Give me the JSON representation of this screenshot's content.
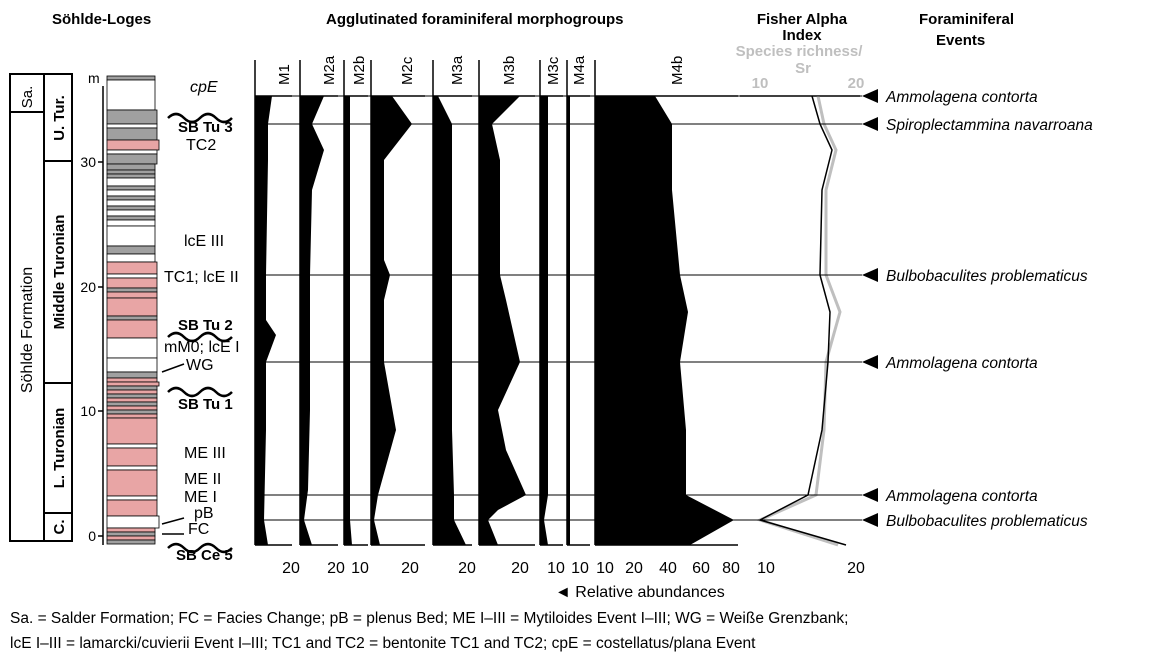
{
  "headers": {
    "section": "Söhlde-Loges",
    "morphogroups": "Agglutinated foraminiferal morphogroups",
    "fisher_line1": "Fisher Alpha",
    "fisher_line2": "Index",
    "richness_line1": "Species richness/",
    "richness_line2": "Sr",
    "events_line1": "Foraminiferal",
    "events_line2": "Events"
  },
  "depth_unit": "m",
  "depth_ticks": [
    "0",
    "10",
    "20",
    "30"
  ],
  "lithostratigraphy": {
    "formation": "Söhlde Formation",
    "salder": "Sa."
  },
  "chronostratigraphy": [
    "U. Tur.",
    "Middle Turonian",
    "L. Turonian",
    "C."
  ],
  "stratigraphic_labels": {
    "cpE": "cpE",
    "sb_tu3": "SB Tu 3",
    "tc2": "TC2",
    "lcE3": "lcE III",
    "tc1_lcE2": "TC1; lcE II",
    "sb_tu2": "SB Tu 2",
    "mm0_lcE1": "mM0; lcE I",
    "wg": "WG",
    "sb_tu1": "SB Tu 1",
    "me3": "ME III",
    "me2": "ME II",
    "me1": "ME I",
    "pb": "pB",
    "fc": "FC",
    "sb_ce5": "SB Ce 5"
  },
  "morphogroup_columns": [
    {
      "name": "M1",
      "axis": [
        "20"
      ]
    },
    {
      "name": "M2a",
      "axis": [
        "20"
      ]
    },
    {
      "name": "M2b",
      "axis": [
        "10"
      ]
    },
    {
      "name": "M2c",
      "axis": [
        "20"
      ]
    },
    {
      "name": "M3a",
      "axis": [
        "20"
      ]
    },
    {
      "name": "M3b",
      "axis": [
        "20"
      ]
    },
    {
      "name": "M3c",
      "axis": [
        "10"
      ]
    },
    {
      "name": "M4a",
      "axis": [
        "10"
      ]
    },
    {
      "name": "M4b",
      "axis": [
        "10",
        "20",
        "40",
        "60",
        "80"
      ]
    }
  ],
  "index_axis_bottom": [
    "10",
    "20"
  ],
  "index_axis_top": [
    "10",
    "20"
  ],
  "relative_abundances_label": "◄ Relative abundances",
  "events": [
    "Ammolagena contorta",
    "Spiroplectammina navarroana",
    "Bulbobaculites problematicus",
    "Ammolagena contorta",
    "Ammolagena contorta",
    "Bulbobaculites problematicus"
  ],
  "caption": {
    "line1": "Sa. = Salder Formation; FC = Facies Change; pB = plenus Bed; ME I–III = Mytiloides Event I–III; WG = Weiße Grenzbank;",
    "line2": "lcE I–III = lamarcki/cuvierii Event I–III; TC1 and TC2 = bentonite TC1 and TC2; cpE = costellatus/plana Event"
  },
  "colors": {
    "marl": "#e8a5a5",
    "limestone_dark": "#a0a0a0",
    "fill": "#000000",
    "species_richness": "#bfbfbf"
  }
}
